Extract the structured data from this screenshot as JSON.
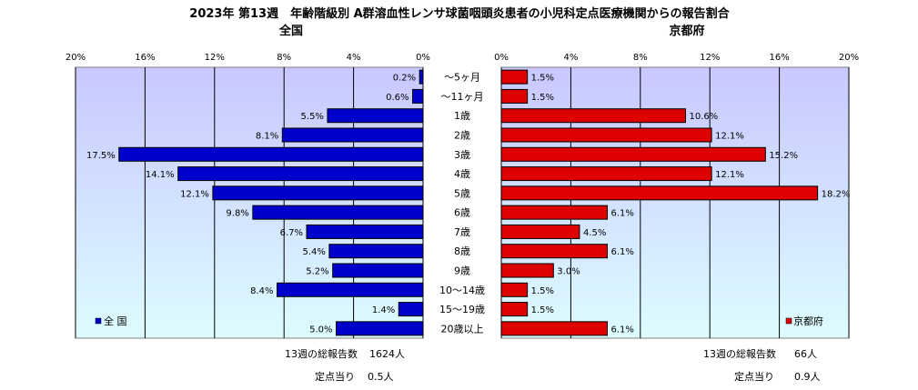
{
  "chart_data": {
    "type": "bar",
    "title": "2023年 第13週　年齢階級別 A群溶血性レンサ球菌咽頭炎患者の小児科定点医療機関からの報告割合",
    "categories": [
      "～5ヶ月",
      "～11ヶ月",
      "1歳",
      "2歳",
      "3歳",
      "4歳",
      "5歳",
      "6歳",
      "7歳",
      "8歳",
      "9歳",
      "10～14歳",
      "15～19歳",
      "20歳以上"
    ],
    "tick_labels": [
      "0%",
      "4%",
      "8%",
      "12%",
      "16%",
      "20%"
    ],
    "xlim": [
      0,
      20
    ],
    "series": [
      {
        "name": "全国",
        "legend": "全 国",
        "color": "#0000cc",
        "values": [
          0.2,
          0.6,
          5.5,
          8.1,
          17.5,
          14.1,
          12.1,
          9.8,
          6.7,
          5.4,
          5.2,
          8.4,
          1.4,
          5.0
        ],
        "labels": [
          "0.2%",
          "0.6%",
          "5.5%",
          "8.1%",
          "17.5%",
          "14.1%",
          "12.1%",
          "9.8%",
          "6.7%",
          "5.4%",
          "5.2%",
          "8.4%",
          "1.4%",
          "5.0%"
        ],
        "footer": {
          "total_label": "13週の総報告数",
          "total_value": "1624人",
          "per_label": "定点当り",
          "per_value": "0.5人"
        }
      },
      {
        "name": "京都府",
        "legend": "京都府",
        "color": "#dd0000",
        "values": [
          1.5,
          1.5,
          10.6,
          12.1,
          15.2,
          12.1,
          18.2,
          6.1,
          4.5,
          6.1,
          3.0,
          1.5,
          1.5,
          6.1
        ],
        "labels": [
          "1.5%",
          "1.5%",
          "10.6%",
          "12.1%",
          "15.2%",
          "12.1%",
          "18.2%",
          "6.1%",
          "4.5%",
          "6.1%",
          "3.0%",
          "1.5%",
          "1.5%",
          "6.1%"
        ],
        "footer": {
          "total_label": "13週の総報告数",
          "total_value": "66人",
          "per_label": "定点当り",
          "per_value": "0.9人"
        }
      }
    ],
    "colors": {
      "panel_top": "#c8c8ff",
      "panel_bottom": "#ddfcff",
      "grid": "#000000"
    }
  }
}
